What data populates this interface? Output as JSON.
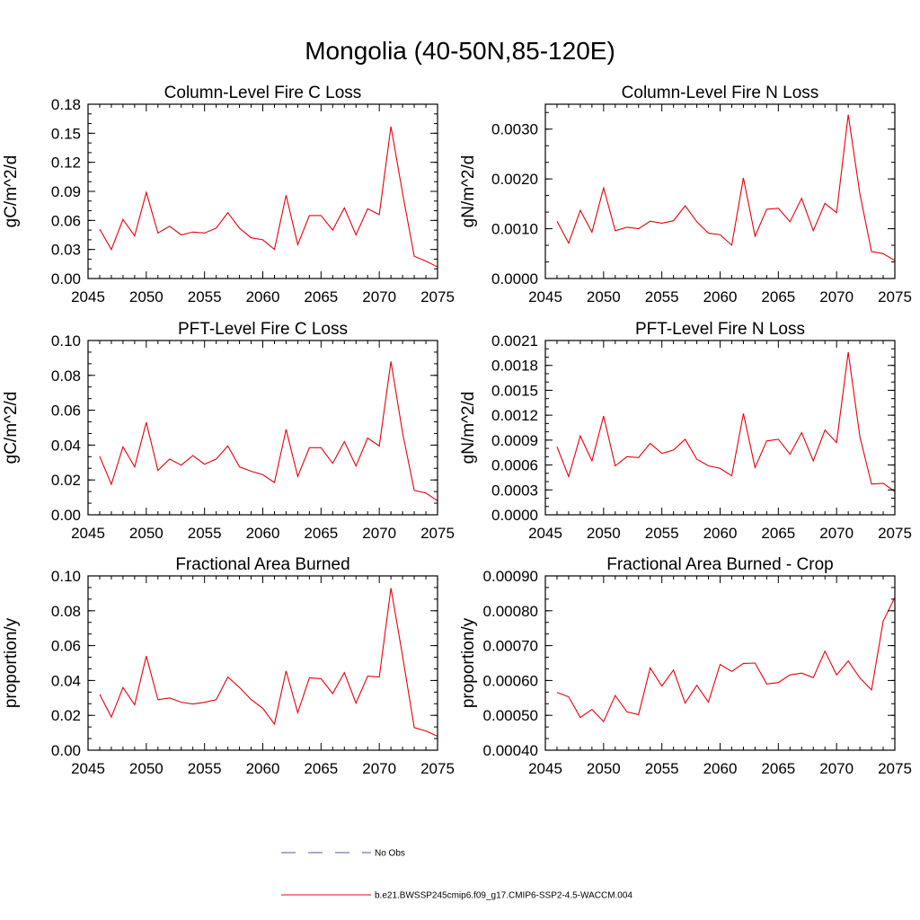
{
  "figure": {
    "title": "Mongolia (40-50N,85-120E)"
  },
  "legend": {
    "items": [
      {
        "label": "No Obs",
        "color": "#4a58a8",
        "dash": true
      },
      {
        "label": "b.e21.BWSSP245cmip6.f09_g17.CMIP6-SSP2-4.5-WACCM.004",
        "color": "#e8000b",
        "dash": false
      }
    ]
  },
  "chart_data": [
    {
      "type": "line",
      "title": "Column-Level Fire C Loss",
      "ylabel": "gC/m^2/d",
      "xlim": [
        2045,
        2075
      ],
      "ylim": [
        0,
        0.18
      ],
      "xticks": [
        "2045",
        "2050",
        "2055",
        "2060",
        "2065",
        "2070",
        "2075"
      ],
      "yticks": [
        "0.00",
        "0.03",
        "0.06",
        "0.09",
        "0.12",
        "0.15",
        "0.18"
      ],
      "x": [
        2046,
        2047,
        2048,
        2049,
        2050,
        2051,
        2052,
        2053,
        2054,
        2055,
        2056,
        2057,
        2058,
        2059,
        2060,
        2061,
        2062,
        2063,
        2064,
        2065,
        2066,
        2067,
        2068,
        2069,
        2070,
        2071,
        2072,
        2073,
        2074,
        2075
      ],
      "series": [
        {
          "name": "b.e21.BWSSP245cmip6.f09_g17.CMIP6-SSP2-4.5-WACCM.004",
          "color": "#e8000b",
          "values": [
            0.051,
            0.03,
            0.061,
            0.044,
            0.089,
            0.047,
            0.054,
            0.045,
            0.048,
            0.047,
            0.052,
            0.068,
            0.052,
            0.042,
            0.04,
            0.03,
            0.086,
            0.035,
            0.065,
            0.065,
            0.05,
            0.073,
            0.045,
            0.072,
            0.066,
            0.157,
            0.088,
            0.023,
            0.018,
            0.012
          ]
        }
      ]
    },
    {
      "type": "line",
      "title": "Column-Level Fire N Loss",
      "ylabel": "gN/m^2/d",
      "xlim": [
        2045,
        2075
      ],
      "ylim": [
        0,
        0.0035
      ],
      "xticks": [
        "2045",
        "2050",
        "2055",
        "2060",
        "2065",
        "2070",
        "2075"
      ],
      "yticks": [
        "0.0000",
        "0.0010",
        "0.0020",
        "0.0030"
      ],
      "x": [
        2046,
        2047,
        2048,
        2049,
        2050,
        2051,
        2052,
        2053,
        2054,
        2055,
        2056,
        2057,
        2058,
        2059,
        2060,
        2061,
        2062,
        2063,
        2064,
        2065,
        2066,
        2067,
        2068,
        2069,
        2070,
        2071,
        2072,
        2073,
        2074,
        2075
      ],
      "series": [
        {
          "name": "b.e21.BWSSP245cmip6.f09_g17.CMIP6-SSP2-4.5-WACCM.004",
          "color": "#e8000b",
          "values": [
            0.00115,
            0.00071,
            0.00137,
            0.00093,
            0.00182,
            0.00096,
            0.00103,
            0.001,
            0.00115,
            0.00111,
            0.00116,
            0.00146,
            0.00114,
            0.00091,
            0.00088,
            0.00067,
            0.00202,
            0.00085,
            0.00139,
            0.00141,
            0.00114,
            0.00161,
            0.00096,
            0.00151,
            0.00132,
            0.00329,
            0.0017,
            0.00054,
            0.0005,
            0.00036
          ]
        }
      ]
    },
    {
      "type": "line",
      "title": "PFT-Level Fire C Loss",
      "ylabel": "gC/m^2/d",
      "xlim": [
        2045,
        2075
      ],
      "ylim": [
        0,
        0.1
      ],
      "xticks": [
        "2045",
        "2050",
        "2055",
        "2060",
        "2065",
        "2070",
        "2075"
      ],
      "yticks": [
        "0.00",
        "0.02",
        "0.04",
        "0.06",
        "0.08",
        "0.10"
      ],
      "x": [
        2046,
        2047,
        2048,
        2049,
        2050,
        2051,
        2052,
        2053,
        2054,
        2055,
        2056,
        2057,
        2058,
        2059,
        2060,
        2061,
        2062,
        2063,
        2064,
        2065,
        2066,
        2067,
        2068,
        2069,
        2070,
        2071,
        2072,
        2073,
        2074,
        2075
      ],
      "series": [
        {
          "name": "b.e21.BWSSP245cmip6.f09_g17.CMIP6-SSP2-4.5-WACCM.004",
          "color": "#e8000b",
          "values": [
            0.0335,
            0.0175,
            0.039,
            0.0275,
            0.053,
            0.0255,
            0.032,
            0.0285,
            0.034,
            0.029,
            0.032,
            0.0395,
            0.0275,
            0.025,
            0.023,
            0.0185,
            0.049,
            0.022,
            0.0385,
            0.0385,
            0.0295,
            0.042,
            0.028,
            0.044,
            0.0395,
            0.088,
            0.047,
            0.014,
            0.0125,
            0.008
          ]
        }
      ]
    },
    {
      "type": "line",
      "title": "PFT-Level Fire N Loss",
      "ylabel": "gN/m^2/d",
      "xlim": [
        2045,
        2075
      ],
      "ylim": [
        0,
        0.0021
      ],
      "xticks": [
        "2045",
        "2050",
        "2055",
        "2060",
        "2065",
        "2070",
        "2075"
      ],
      "yticks": [
        "0.0000",
        "0.0003",
        "0.0006",
        "0.0009",
        "0.0012",
        "0.0015",
        "0.0018",
        "0.0021"
      ],
      "x": [
        2046,
        2047,
        2048,
        2049,
        2050,
        2051,
        2052,
        2053,
        2054,
        2055,
        2056,
        2057,
        2058,
        2059,
        2060,
        2061,
        2062,
        2063,
        2064,
        2065,
        2066,
        2067,
        2068,
        2069,
        2070,
        2071,
        2072,
        2073,
        2074,
        2075
      ],
      "series": [
        {
          "name": "b.e21.BWSSP245cmip6.f09_g17.CMIP6-SSP2-4.5-WACCM.004",
          "color": "#e8000b",
          "values": [
            0.00082,
            0.00046,
            0.00095,
            0.00065,
            0.00119,
            0.00059,
            0.0007,
            0.00069,
            0.00086,
            0.00074,
            0.00078,
            0.00091,
            0.00067,
            0.00059,
            0.00056,
            0.00047,
            0.00122,
            0.00057,
            0.00089,
            0.00091,
            0.00073,
            0.00099,
            0.00065,
            0.00102,
            0.00087,
            0.00196,
            0.00094,
            0.00037,
            0.00038,
            0.00028
          ]
        }
      ]
    },
    {
      "type": "line",
      "title": "Fractional Area Burned",
      "ylabel": "proportion/y",
      "xlim": [
        2045,
        2075
      ],
      "ylim": [
        0,
        0.1
      ],
      "xticks": [
        "2045",
        "2050",
        "2055",
        "2060",
        "2065",
        "2070",
        "2075"
      ],
      "yticks": [
        "0.00",
        "0.02",
        "0.04",
        "0.06",
        "0.08",
        "0.10"
      ],
      "x": [
        2046,
        2047,
        2048,
        2049,
        2050,
        2051,
        2052,
        2053,
        2054,
        2055,
        2056,
        2057,
        2058,
        2059,
        2060,
        2061,
        2062,
        2063,
        2064,
        2065,
        2066,
        2067,
        2068,
        2069,
        2070,
        2071,
        2072,
        2073,
        2074,
        2075
      ],
      "series": [
        {
          "name": "b.e21.BWSSP245cmip6.f09_g17.CMIP6-SSP2-4.5-WACCM.004",
          "color": "#e8000b",
          "values": [
            0.032,
            0.019,
            0.036,
            0.026,
            0.054,
            0.029,
            0.03,
            0.0275,
            0.0265,
            0.0275,
            0.029,
            0.042,
            0.036,
            0.029,
            0.024,
            0.015,
            0.0455,
            0.0215,
            0.0415,
            0.041,
            0.0325,
            0.0445,
            0.027,
            0.0425,
            0.042,
            0.093,
            0.054,
            0.013,
            0.011,
            0.008
          ]
        }
      ]
    },
    {
      "type": "line",
      "title": "Fractional Area Burned - Crop",
      "ylabel": "proportion/y",
      "xlim": [
        2045,
        2075
      ],
      "ylim": [
        0.0004,
        0.0009
      ],
      "xticks": [
        "2045",
        "2050",
        "2055",
        "2060",
        "2065",
        "2070",
        "2075"
      ],
      "yticks": [
        "0.00040",
        "0.00050",
        "0.00060",
        "0.00070",
        "0.00080",
        "0.00090"
      ],
      "x": [
        2046,
        2047,
        2048,
        2049,
        2050,
        2051,
        2052,
        2053,
        2054,
        2055,
        2056,
        2057,
        2058,
        2059,
        2060,
        2061,
        2062,
        2063,
        2064,
        2065,
        2066,
        2067,
        2068,
        2069,
        2070,
        2071,
        2072,
        2073,
        2074,
        2075
      ],
      "series": [
        {
          "name": "b.e21.BWSSP245cmip6.f09_g17.CMIP6-SSP2-4.5-WACCM.004",
          "color": "#e8000b",
          "values": [
            0.000566,
            0.000553,
            0.000494,
            0.000517,
            0.000482,
            0.000557,
            0.00051,
            0.000502,
            0.000636,
            0.000584,
            0.00063,
            0.000535,
            0.000586,
            0.000538,
            0.000646,
            0.000626,
            0.000649,
            0.00065,
            0.00059,
            0.000594,
            0.000616,
            0.000621,
            0.000608,
            0.000684,
            0.000616,
            0.000656,
            0.000607,
            0.000573,
            0.00077,
            0.000838
          ]
        }
      ]
    }
  ]
}
